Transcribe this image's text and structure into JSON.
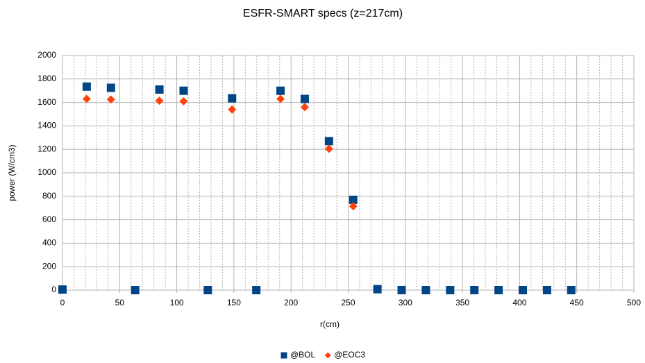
{
  "chart_data": {
    "type": "scatter",
    "title": "ESFR-SMART specs (z=217cm)",
    "xlabel": "r(cm)",
    "ylabel": "power (W/cm3)",
    "x": [
      0,
      21.2,
      42.4,
      63.6,
      84.8,
      106,
      127.2,
      148.4,
      169.6,
      190.8,
      212,
      233.2,
      254.4,
      275.6,
      296.8,
      318,
      339.2,
      360.4,
      381.6,
      402.8,
      424,
      445.2
    ],
    "series": [
      {
        "name": "@BOL",
        "color": "#004586",
        "marker": "square",
        "values": [
          5,
          1735,
          1725,
          0,
          1710,
          1700,
          0,
          1635,
          0,
          1700,
          1630,
          1270,
          770,
          8,
          0,
          0,
          0,
          0,
          0,
          0,
          0,
          0
        ]
      },
      {
        "name": "@EOC3",
        "color": "#ff420e",
        "marker": "diamond",
        "values": [
          null,
          1630,
          1625,
          null,
          1615,
          1610,
          null,
          1540,
          null,
          1630,
          1560,
          1205,
          715,
          null,
          null,
          null,
          null,
          null,
          null,
          null,
          null,
          null
        ]
      }
    ],
    "xlim": [
      0,
      500
    ],
    "xticks": [
      0,
      50,
      100,
      150,
      200,
      250,
      300,
      350,
      400,
      450,
      500
    ],
    "ylim": [
      0,
      2000
    ],
    "yticks": [
      0,
      200,
      400,
      600,
      800,
      1000,
      1200,
      1400,
      1600,
      1800,
      2000
    ],
    "grid": true,
    "xminor": 10,
    "legend": "bottom"
  }
}
